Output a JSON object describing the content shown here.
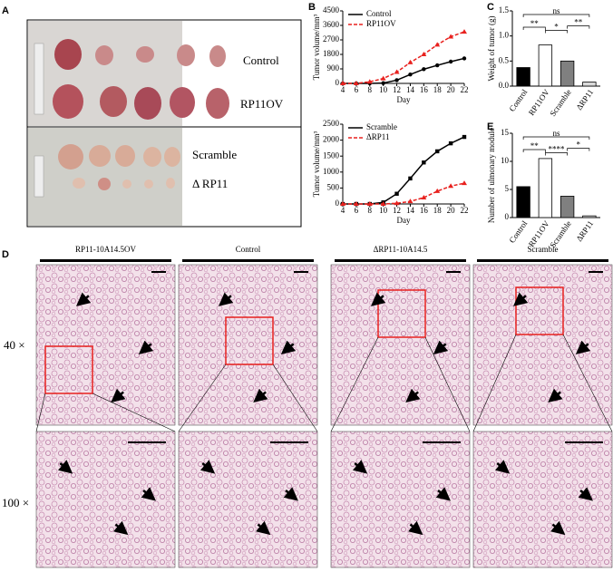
{
  "panels": {
    "A": "A",
    "B": "B",
    "C": "C",
    "D": "D",
    "E": "E"
  },
  "photo_labels": [
    "Control",
    "RP11OV",
    "Scramble",
    "Δ RP11"
  ],
  "histology": {
    "columns": [
      "RP11-10A14.5OV",
      "Control",
      "ΔRP11-10A14.5",
      "Scramble"
    ],
    "rows": [
      "40 ×",
      "100 ×"
    ]
  },
  "chart_data": [
    {
      "type": "line",
      "x_label": "Day",
      "y_label": "Tumor volume/mm³",
      "x": [
        4,
        6,
        8,
        10,
        12,
        14,
        16,
        18,
        20,
        22
      ],
      "xlim": [
        4,
        22
      ],
      "xticks": [
        4,
        6,
        8,
        10,
        12,
        14,
        16,
        18,
        20,
        22
      ],
      "ylim": [
        0,
        4500
      ],
      "yticks": [
        0,
        900,
        1800,
        2700,
        3600,
        4500
      ],
      "series": [
        {
          "name": "Control",
          "color": "#000000",
          "marker": "circle",
          "style": "solid",
          "values": [
            0,
            0,
            0,
            20,
            200,
            550,
            880,
            1120,
            1350,
            1550
          ]
        },
        {
          "name": "RP11OV",
          "color": "#e8211e",
          "marker": "triangle",
          "style": "dashed",
          "values": [
            0,
            0,
            100,
            300,
            700,
            1300,
            1800,
            2400,
            2900,
            3200
          ]
        }
      ]
    },
    {
      "type": "line",
      "x_label": "Day",
      "y_label": "Tumor volume/mm³",
      "x": [
        4,
        6,
        8,
        10,
        12,
        14,
        16,
        18,
        20,
        22
      ],
      "xlim": [
        4,
        22
      ],
      "xticks": [
        4,
        6,
        8,
        10,
        12,
        14,
        16,
        18,
        20,
        22
      ],
      "ylim": [
        0,
        2500
      ],
      "yticks": [
        0,
        500,
        1000,
        1500,
        2000,
        2500
      ],
      "series": [
        {
          "name": "Scramble",
          "color": "#000000",
          "marker": "square",
          "style": "solid",
          "values": [
            0,
            0,
            0,
            50,
            320,
            800,
            1300,
            1650,
            1900,
            2100
          ]
        },
        {
          "name": "ΔRP11",
          "color": "#e8211e",
          "marker": "triangle",
          "style": "dashed",
          "values": [
            0,
            0,
            0,
            0,
            20,
            80,
            200,
            400,
            560,
            650
          ]
        }
      ]
    },
    {
      "type": "bar",
      "y_label": "Weight of tumor (g)",
      "categories": [
        "Control",
        "RP11OV",
        "Scramble",
        "ΔRP11"
      ],
      "values": [
        0.37,
        0.82,
        0.5,
        0.08
      ],
      "colors": [
        "#000000",
        "#ffffff",
        "#808080",
        "#d9d9d9"
      ],
      "ylim": [
        0,
        1.5
      ],
      "yticks": [
        {
          "value": 0,
          "label": "0.0"
        },
        0.5,
        {
          "value": 1,
          "label": "1.0"
        },
        1.5
      ],
      "annotations": [
        "ns",
        "**",
        "*",
        "**"
      ]
    },
    {
      "type": "bar",
      "y_label": "Number of ulmonary module",
      "categories": [
        "Control",
        "RP11OV",
        "Scramble",
        "ΔRP11"
      ],
      "values": [
        5.5,
        10.5,
        3.8,
        0.3
      ],
      "colors": [
        "#000000",
        "#ffffff",
        "#808080",
        "#d9d9d9"
      ],
      "ylim": [
        0,
        15
      ],
      "yticks": [
        0,
        5,
        10,
        15
      ],
      "annotations": [
        "ns",
        "**",
        "****",
        "*"
      ]
    }
  ]
}
